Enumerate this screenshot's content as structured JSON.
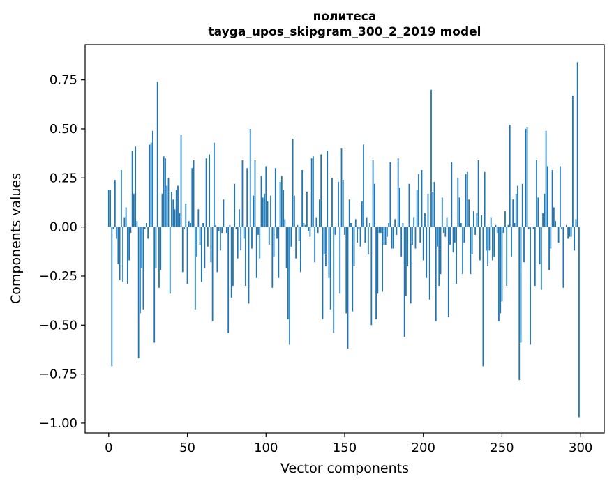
{
  "chart_data": {
    "type": "bar",
    "title": "политеса",
    "subtitle": "tayga_upos_skipgram_300_2_2019 model",
    "xlabel": "Vector components",
    "ylabel": "Components values",
    "xlim": [
      -15,
      315
    ],
    "ylim": [
      -1.05,
      0.93
    ],
    "xticks": [
      0,
      50,
      100,
      150,
      200,
      250,
      300
    ],
    "xtick_labels": [
      "0",
      "50",
      "100",
      "150",
      "200",
      "250",
      "300"
    ],
    "yticks": [
      0.75,
      0.5,
      0.25,
      0.0,
      -0.25,
      -0.5,
      -0.75,
      -1.0
    ],
    "ytick_labels": [
      "0.75",
      "0.50",
      "0.25",
      "0.00",
      "−0.25",
      "−0.50",
      "−0.75",
      "−1.00"
    ],
    "grid": false,
    "bar_color": "#1f77b4",
    "values": [
      0.19,
      0.19,
      -0.71,
      -0.01,
      0.24,
      -0.06,
      -0.19,
      -0.27,
      0.29,
      -0.28,
      0.05,
      0.1,
      -0.29,
      -0.17,
      -0.03,
      0.39,
      0.17,
      0.41,
      0.03,
      -0.67,
      -0.44,
      -0.21,
      -0.42,
      -0.01,
      0.02,
      -0.06,
      0.42,
      0.43,
      0.49,
      -0.59,
      -0.21,
      0.74,
      -0.31,
      -0.22,
      0.17,
      0.36,
      0.35,
      0.21,
      0.25,
      -0.34,
      0.18,
      0.14,
      0.09,
      0.19,
      0.21,
      0.07,
      0.47,
      -0.23,
      -0.01,
      0.12,
      -0.29,
      0.03,
      0.02,
      0.3,
      0.34,
      -0.42,
      -0.15,
      0.09,
      -0.09,
      -0.28,
      0.02,
      -0.21,
      0.35,
      -0.1,
      0.37,
      -0.18,
      -0.48,
      0.43,
      0.01,
      -0.23,
      -0.02,
      -0.12,
      -0.03,
      0.14,
      0.0,
      -0.03,
      -0.54,
      0.01,
      -0.36,
      -0.3,
      0.22,
      -0.01,
      -0.16,
      0.09,
      -0.12,
      0.34,
      -0.06,
      -0.3,
      0.3,
      -0.39,
      0.5,
      -0.11,
      0.16,
      0.34,
      -0.26,
      -0.04,
      -0.16,
      0.26,
      0.15,
      0.17,
      0.31,
      0.13,
      -0.09,
      0.16,
      -0.31,
      -0.15,
      0.3,
      -0.06,
      -0.26,
      0.23,
      0.26,
      0.19,
      0.04,
      -0.21,
      -0.47,
      -0.6,
      -0.1,
      0.45,
      0.16,
      -0.16,
      0.01,
      -0.07,
      -0.23,
      0.29,
      0.02,
      0.01,
      0.18,
      -0.02,
      -0.05,
      0.35,
      0.36,
      -0.18,
      0.05,
      -0.03,
      0.14,
      0.37,
      -0.47,
      -0.14,
      -0.2,
      0.39,
      -0.26,
      -0.42,
      0.25,
      -0.54,
      -0.04,
      0.0,
      0.23,
      -0.34,
      0.4,
      0.24,
      -0.04,
      -0.44,
      -0.62,
      0.14,
      0.02,
      -0.43,
      -0.2,
      0.04,
      -0.08,
      -0.01,
      -0.1,
      0.13,
      0.42,
      -0.08,
      0.05,
      -0.14,
      0.02,
      -0.5,
      0.34,
      0.22,
      -0.47,
      -0.34,
      -0.03,
      -0.03,
      -0.33,
      -0.09,
      -0.09,
      -0.05,
      0.02,
      0.33,
      -0.11,
      -0.11,
      0.04,
      -0.04,
      0.35,
      0.2,
      -0.15,
      0.02,
      -0.56,
      -0.35,
      -0.2,
      0.22,
      -0.39,
      -0.09,
      0.05,
      -0.11,
      0.19,
      0.27,
      -0.08,
      0.29,
      -0.17,
      0.07,
      -0.26,
      0.17,
      -0.37,
      0.7,
      0.18,
      0.23,
      -0.48,
      -0.1,
      -0.3,
      -0.24,
      0.15,
      -0.03,
      -0.05,
      0.05,
      -0.46,
      -0.09,
      0.33,
      -0.13,
      -0.08,
      -0.29,
      0.25,
      0.15,
      0.02,
      -0.24,
      -0.08,
      0.27,
      0.28,
      0.14,
      -0.24,
      -0.14,
      0.08,
      -0.04,
      0.07,
      0.34,
      -0.17,
      0.06,
      -0.71,
      0.28,
      -0.12,
      -0.2,
      -0.12,
      0.05,
      -0.17,
      -0.15,
      0.01,
      -0.03,
      -0.48,
      -0.44,
      -0.38,
      -0.03,
      0.08,
      -0.3,
      0.01,
      0.52,
      -0.15,
      0.14,
      0.02,
      0.17,
      0.21,
      -0.78,
      -0.59,
      0.22,
      -0.18,
      0.5,
      0.51,
      -0.01,
      -0.6,
      0.0,
      -0.01,
      -0.3,
      0.34,
      0.15,
      -0.19,
      -0.32,
      0.07,
      0.17,
      0.49,
      0.31,
      -0.22,
      -0.11,
      0.29,
      0.1,
      0.03,
      0.0,
      -0.08,
      0.31,
      -0.01,
      -0.31,
      0.0,
      0.01,
      -0.06,
      -0.05,
      -0.05,
      0.67,
      -0.12,
      0.04,
      0.84,
      -0.97
    ]
  }
}
